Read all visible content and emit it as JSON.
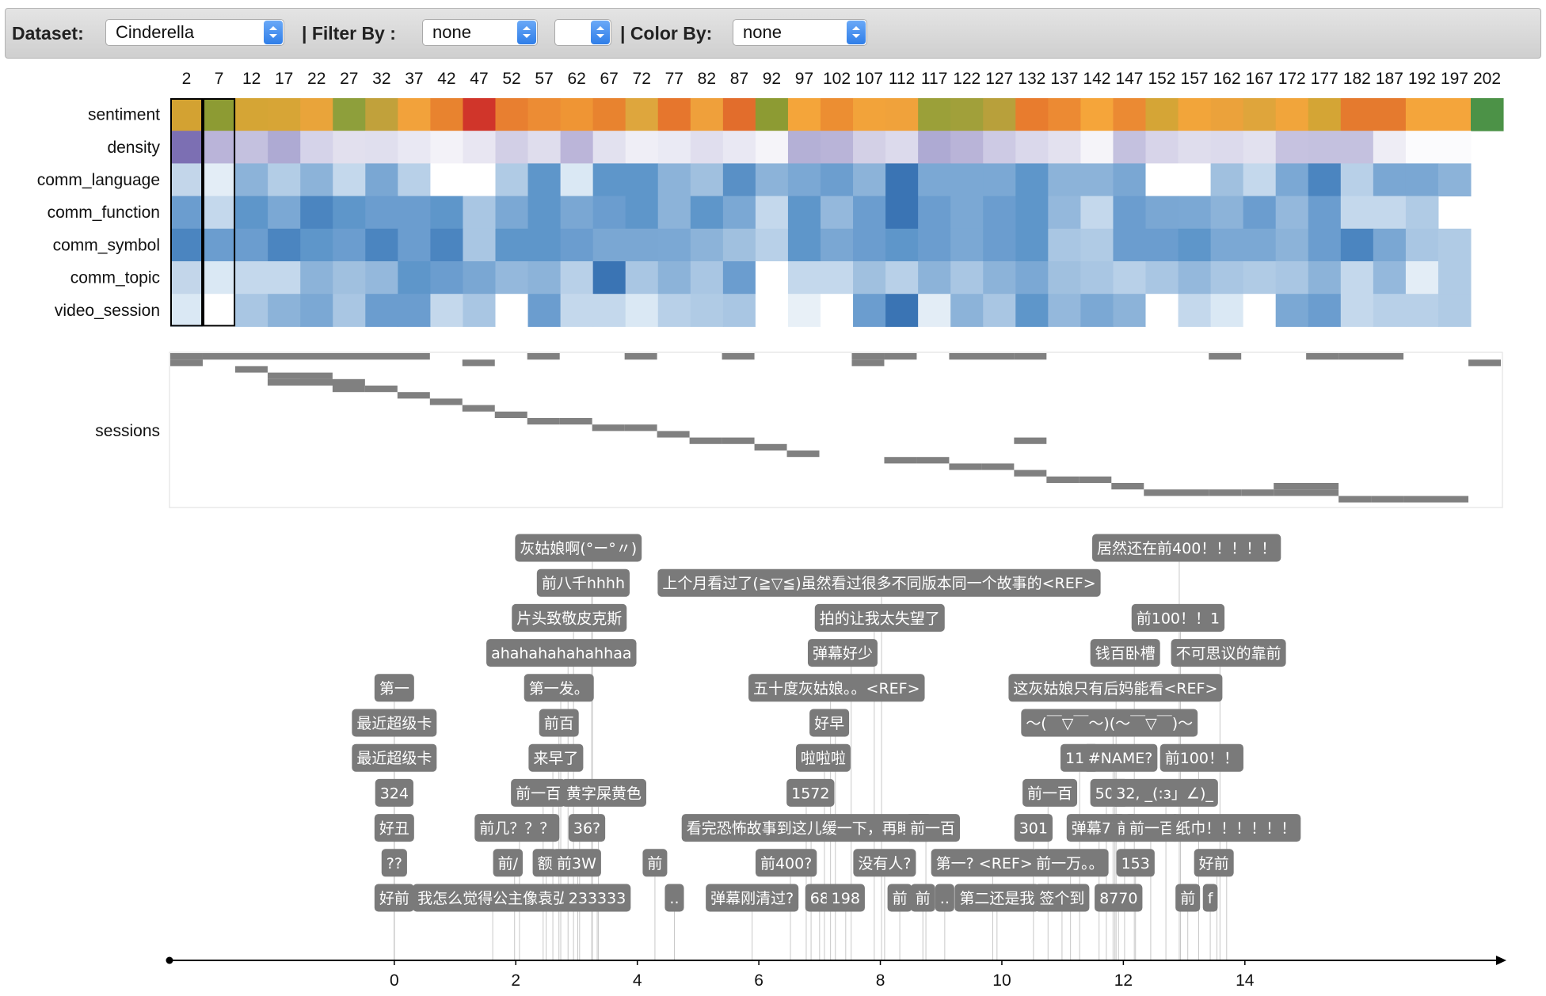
{
  "toolbar": {
    "dataset_label": "Dataset:",
    "dataset_value": "Cinderella",
    "filter_label": "| Filter By :",
    "filter_value": "none",
    "filter2_value": "",
    "color_label": "| Color By:",
    "color_value": "none"
  },
  "columns": [
    "2",
    "7",
    "12",
    "17",
    "22",
    "27",
    "32",
    "37",
    "42",
    "47",
    "52",
    "57",
    "62",
    "67",
    "72",
    "77",
    "82",
    "87",
    "92",
    "97",
    "102",
    "107",
    "112",
    "117",
    "122",
    "127",
    "132",
    "137",
    "142",
    "147",
    "152",
    "157",
    "162",
    "167",
    "172",
    "177",
    "182",
    "187",
    "192",
    "197",
    "202"
  ],
  "row_labels": [
    "sentiment",
    "density",
    "comm_language",
    "comm_function",
    "comm_symbol",
    "comm_topic",
    "video_session"
  ],
  "sessions_label": "sessions",
  "heat": {
    "sentiment": [
      "#d3a232",
      "#8d9b33",
      "#d5a535",
      "#d7a536",
      "#e9a43a",
      "#8e9f3b",
      "#c1a13b",
      "#f2a23b",
      "#e8832f",
      "#d0352a",
      "#e87f30",
      "#ec8c34",
      "#ef9534",
      "#e8832f",
      "#dea63d",
      "#e6762d",
      "#efa03b",
      "#e26d2c",
      "#8d9b33",
      "#f4a53a",
      "#ec8e32",
      "#f2a33a",
      "#f0a23b",
      "#9ba039",
      "#a1a03a",
      "#b8a03b",
      "#e87c2e",
      "#ec8a33",
      "#f5a53a",
      "#eb8a33",
      "#d5a536",
      "#f2a53a",
      "#eba23b",
      "#dfa53b",
      "#f1a53b",
      "#d4a535",
      "#e57a2e",
      "#e57a2e",
      "#f4a53b",
      "#f4a53b",
      "#4c9247"
    ],
    "density": [
      "#7c6fb3",
      "#bab4d9",
      "#c4c1df",
      "#aeaad3",
      "#d5d3e9",
      "#e2e0ee",
      "#e0dfee",
      "#e9e8f3",
      "#f3f2f8",
      "#e8e6f2",
      "#d2cfe6",
      "#dfdded",
      "#bbb5d9",
      "#e2e1ef",
      "#efeef6",
      "#eaeaf4",
      "#e0deee",
      "#e9e8f3",
      "#f5f4f9",
      "#b4b0d6",
      "#b9b4d8",
      "#d3d0e6",
      "#dcdaec",
      "#aeaad3",
      "#b9b4d8",
      "#cdcae4",
      "#dad8eb",
      "#e3e1ef",
      "#f5f4f9",
      "#c4c1df",
      "#d7d4e9",
      "#dfdded",
      "#dcdaec",
      "#e2e1ef",
      "#c6c2e0",
      "#c4c1df",
      "#c4c1df",
      "#eeedf5",
      "#fbfbfd",
      "#fbfbfd",
      null
    ],
    "comm_language": [
      "#c3d6ea",
      "#e3edf6",
      "#8cb3d9",
      "#b3cde6",
      "#8cb3d9",
      "#c4d8ec",
      "#7aa7d3",
      "#b8d0e8",
      "#ffffff",
      "#ffffff",
      "#b0cbe5",
      "#5e96ca",
      "#dae8f4",
      "#5e96ca",
      "#5e96ca",
      "#8cb3d9",
      "#a0c0df",
      "#5990c6",
      "#8cb3d9",
      "#7ba8d4",
      "#6c9ecf",
      "#8cb3d9",
      "#3a74b4",
      "#7ba8d4",
      "#7ba8d4",
      "#7ba8d4",
      "#5e96ca",
      "#8cb3d9",
      "#8cb3d9",
      "#7aa7d3",
      "#ffffff",
      "#ffffff",
      "#a0c0df",
      "#c4d8ec",
      "#7ba8d4",
      "#4b85c0",
      "#b8d0e8",
      "#7aa7d3",
      "#7aa7d3",
      "#8cb3d9",
      null
    ],
    "comm_function": [
      "#6b9dcf",
      "#c4d8ec",
      "#5e96ca",
      "#7ba8d4",
      "#4b85c0",
      "#5e96ca",
      "#6b9dcf",
      "#6b9dcf",
      "#5e96ca",
      "#a9c6e3",
      "#7ba8d4",
      "#5e96ca",
      "#7aa7d3",
      "#6b9dcf",
      "#5e96ca",
      "#8cb3d9",
      "#5e96ca",
      "#7ba8d4",
      "#c4d8ec",
      "#5e96ca",
      "#94b8dc",
      "#6b9dcf",
      "#3a74b4",
      "#6b9dcf",
      "#7ba8d4",
      "#6b9dcf",
      "#5e96ca",
      "#94b8dc",
      "#c4d8ec",
      "#6b9dcf",
      "#7aa7d3",
      "#7ba8d4",
      "#8cb3d9",
      "#6b9dcf",
      "#94b8dc",
      "#6b9dcf",
      "#c4d8ec",
      "#c4d8ec",
      "#b0cbe5",
      null,
      null
    ],
    "comm_symbol": [
      "#4b85c0",
      "#6b9dcf",
      "#6b9dcf",
      "#4b85c0",
      "#5e96ca",
      "#6b9dcf",
      "#4b85c0",
      "#6b9dcf",
      "#4b85c0",
      "#a9c6e3",
      "#5e96ca",
      "#5e96ca",
      "#6b9dcf",
      "#7aa7d3",
      "#7aa7d3",
      "#7ba8d4",
      "#8cb3d9",
      "#a0c0df",
      "#b8d0e8",
      "#5e96ca",
      "#7aa7d3",
      "#6b9dcf",
      "#5e96ca",
      "#6b9dcf",
      "#7ba8d4",
      "#6b9dcf",
      "#5e96ca",
      "#a9c6e3",
      "#b0cbe5",
      "#6b9dcf",
      "#6b9dcf",
      "#5e96ca",
      "#7ba8d4",
      "#7ba8d4",
      "#8cb3d9",
      "#6b9dcf",
      "#4b85c0",
      "#7aa7d3",
      "#a9c6e3",
      "#b0cbe5",
      null
    ],
    "comm_topic": [
      "#c3d6ea",
      "#dae8f4",
      "#c4d8ec",
      "#c4d8ec",
      "#8cb3d9",
      "#a0c0df",
      "#94b8dc",
      "#5e96ca",
      "#6b9dcf",
      "#7aa7d3",
      "#94b8dc",
      "#8cb3d9",
      "#b8d0e8",
      "#3a74b4",
      "#a9c6e3",
      "#8cb3d9",
      "#a9c6e3",
      "#6b9dcf",
      "#ffffff",
      "#c4d8ec",
      "#c4d8ec",
      "#a0c0df",
      "#b8d0e8",
      "#8cb3d9",
      "#a9c6e3",
      "#8cb3d9",
      "#7ba8d4",
      "#a0c0df",
      "#a9c6e3",
      "#b8d0e8",
      "#a9c6e3",
      "#94b8dc",
      "#a9c6e3",
      "#b0cbe5",
      "#a9c6e3",
      "#8cb3d9",
      "#c4d8ec",
      "#94b8dc",
      "#e3edf6",
      "#b0cbe5",
      null
    ],
    "video_session": [
      "#dae8f4",
      "#ffffff",
      "#a9c6e3",
      "#8cb3d9",
      "#7ba8d4",
      "#a9c6e3",
      "#6b9dcf",
      "#6b9dcf",
      "#c4d8ec",
      "#a9c6e3",
      "#ffffff",
      "#6b9dcf",
      "#c4d8ec",
      "#c4d8ec",
      "#dae8f4",
      "#b8d0e8",
      "#b0cbe5",
      "#a9c6e3",
      "#ffffff",
      "#e8f0f7",
      "#ffffff",
      "#6b9dcf",
      "#3a74b4",
      "#e3edf6",
      "#8cb3d9",
      "#a9c6e3",
      "#5e96ca",
      "#94b8dc",
      "#7ba8d4",
      "#8cb3d9",
      "#ffffff",
      "#c4d8ec",
      "#dae8f4",
      "#ffffff",
      "#7ba8d4",
      "#6b9dcf",
      "#c4d8ec",
      "#b8d0e8",
      "#b8d0e8",
      "#b0cbe5",
      null
    ]
  },
  "sessions": {
    "duration": 205,
    "rows": 20,
    "spans": [
      [
        0,
        5,
        0
      ],
      [
        0,
        5,
        1
      ],
      [
        5,
        40,
        0
      ],
      [
        10,
        15,
        2
      ],
      [
        15,
        25,
        3
      ],
      [
        20,
        25,
        4
      ],
      [
        15,
        30,
        4
      ],
      [
        25,
        30,
        5
      ],
      [
        30,
        35,
        5
      ],
      [
        35,
        40,
        6
      ],
      [
        40,
        45,
        7
      ],
      [
        45,
        50,
        8
      ],
      [
        45,
        50,
        1
      ],
      [
        50,
        55,
        9
      ],
      [
        55,
        60,
        10
      ],
      [
        55,
        60,
        0
      ],
      [
        60,
        65,
        10
      ],
      [
        65,
        70,
        11
      ],
      [
        70,
        75,
        11
      ],
      [
        70,
        75,
        0
      ],
      [
        75,
        80,
        12
      ],
      [
        80,
        85,
        13
      ],
      [
        85,
        90,
        13
      ],
      [
        85,
        90,
        0
      ],
      [
        90,
        95,
        14
      ],
      [
        95,
        100,
        15
      ],
      [
        105,
        110,
        0
      ],
      [
        105,
        110,
        1
      ],
      [
        110,
        115,
        0
      ],
      [
        110,
        115,
        16
      ],
      [
        115,
        120,
        16
      ],
      [
        120,
        130,
        0
      ],
      [
        120,
        125,
        17
      ],
      [
        125,
        130,
        17
      ],
      [
        130,
        135,
        18
      ],
      [
        130,
        135,
        0
      ],
      [
        130,
        135,
        13
      ],
      [
        135,
        140,
        19
      ],
      [
        140,
        145,
        19
      ],
      [
        145,
        150,
        20
      ],
      [
        150,
        160,
        21
      ],
      [
        160,
        165,
        21
      ],
      [
        160,
        165,
        0
      ],
      [
        165,
        170,
        21
      ],
      [
        170,
        180,
        20
      ],
      [
        170,
        180,
        21
      ],
      [
        175,
        180,
        0
      ],
      [
        180,
        185,
        22
      ],
      [
        185,
        190,
        22
      ],
      [
        180,
        190,
        0
      ],
      [
        190,
        200,
        22
      ],
      [
        200,
        205,
        1
      ]
    ]
  },
  "timeline": {
    "ticks": [
      "0",
      "2",
      "4",
      "6",
      "8",
      "10",
      "12",
      "14"
    ],
    "tick_values": [
      0,
      2,
      4,
      6,
      8,
      10,
      12,
      14
    ],
    "axis_min": -3.7,
    "axis_max": 18.2
  },
  "annotations": [
    {
      "text": "灰姑娘啊(°ー°〃)",
      "cx": 3.03,
      "row": 0,
      "t": 3.26
    },
    {
      "text": "居然还在前400！！！！！",
      "cx": 13.04,
      "row": 0,
      "t": 12.92
    },
    {
      "text": "前八千hhhh",
      "cx": 3.11,
      "row": 1,
      "t": 3.25
    },
    {
      "text": "上个月看过了(≧▽≦)虽然看过很多不同版本同一个故事的<REF>",
      "cx": 7.98,
      "row": 1,
      "t": 8.02
    },
    {
      "text": "片头致敬皮克斯",
      "cx": 2.88,
      "row": 2,
      "t": 2.95
    },
    {
      "text": "拍的让我太失望了",
      "cx": 7.99,
      "row": 2,
      "t": 7.9
    },
    {
      "text": "前100！！1",
      "cx": 12.9,
      "row": 2,
      "t": 12.94
    },
    {
      "text": "ahahahahahahhaa",
      "cx": 2.75,
      "row": 3,
      "t": 2.86
    },
    {
      "text": "弹幕好少",
      "cx": 7.38,
      "row": 3,
      "t": 7.52
    },
    {
      "text": "钱百卧槽",
      "cx": 12.03,
      "row": 3,
      "t": 12.18
    },
    {
      "text": "不可思议的靠前",
      "cx": 13.73,
      "row": 3,
      "t": 13.59
    },
    {
      "text": "第一",
      "cx": 0.0,
      "row": 4,
      "t": 0.0
    },
    {
      "text": "第一发。",
      "cx": 2.71,
      "row": 4,
      "t": 2.74
    },
    {
      "text": "五十度灰姑娘。。<REF>",
      "cx": 7.28,
      "row": 4,
      "t": 7.18
    },
    {
      "text": "这灰姑娘只有后妈能看<REF>",
      "cx": 11.87,
      "row": 4,
      "t": 11.88
    },
    {
      "text": "最近超级卡",
      "cx": 0.0,
      "row": 5,
      "t": 0.0
    },
    {
      "text": "前百",
      "cx": 2.71,
      "row": 5,
      "t": 2.71
    },
    {
      "text": "好早",
      "cx": 7.16,
      "row": 5,
      "t": 7.26
    },
    {
      "text": "～(￣▽￣～)(～￣▽￣)～",
      "cx": 11.77,
      "row": 5,
      "t": 11.83
    },
    {
      "text": "最近超级卡",
      "cx": 0.0,
      "row": 6,
      "t": 0.0
    },
    {
      "text": "来早了",
      "cx": 2.66,
      "row": 6,
      "t": 2.61
    },
    {
      "text": "啦啦啦",
      "cx": 7.06,
      "row": 6,
      "t": 7.08
    },
    {
      "text": "110",
      "cx": 11.28,
      "row": 6,
      "t": 11.28
    },
    {
      "text": "#NAME?",
      "cx": 11.95,
      "row": 6,
      "t": 11.86
    },
    {
      "text": "前100！！",
      "cx": 13.29,
      "row": 6,
      "t": 13.24
    },
    {
      "text": "324",
      "cx": 0.0,
      "row": 7,
      "t": 0.0
    },
    {
      "text": "前一百",
      "cx": 2.37,
      "row": 7,
      "t": 2.45
    },
    {
      "text": "黄字屎黄色",
      "cx": 3.45,
      "row": 7,
      "t": 3.36
    },
    {
      "text": "1572",
      "cx": 6.85,
      "row": 7,
      "t": 6.78
    },
    {
      "text": "前一百",
      "cx": 10.79,
      "row": 7,
      "t": 10.76
    },
    {
      "text": "507",
      "cx": 11.77,
      "row": 7,
      "t": 11.72
    },
    {
      "text": "32, _(:з」∠)_",
      "cx": 12.68,
      "row": 7,
      "t": 12.7
    },
    {
      "text": "好丑",
      "cx": 0.0,
      "row": 8,
      "t": 0.0
    },
    {
      "text": "前几？？？",
      "cx": 2.02,
      "row": 8,
      "t": 2.06
    },
    {
      "text": "36?",
      "cx": 3.17,
      "row": 8,
      "t": 3.05
    },
    {
      "text": "看完恐怖故事到这儿缓一下，再睡觉",
      "cx": 6.79,
      "row": 8,
      "t": 6.86
    },
    {
      "text": "前一百",
      "cx": 8.86,
      "row": 8,
      "t": 8.75
    },
    {
      "text": "301",
      "cx": 10.52,
      "row": 8,
      "t": 10.52
    },
    {
      "text": "弹幕77",
      "cx": 11.55,
      "row": 8,
      "t": 11.6
    },
    {
      "text": "前",
      "cx": 12.02,
      "row": 8,
      "t": 12.02
    },
    {
      "text": "前一百",
      "cx": 12.47,
      "row": 8,
      "t": 12.45
    },
    {
      "text": "纸巾！！！！！！",
      "cx": 13.85,
      "row": 8,
      "t": 13.7
    },
    {
      "text": "??",
      "cx": 0.0,
      "row": 9,
      "t": 0.0
    },
    {
      "text": "前/",
      "cx": 1.87,
      "row": 9,
      "t": 1.98
    },
    {
      "text": "额",
      "cx": 2.48,
      "row": 9,
      "t": 2.5
    },
    {
      "text": "前3W",
      "cx": 3.0,
      "row": 9,
      "t": 3.02
    },
    {
      "text": "前",
      "cx": 4.29,
      "row": 9,
      "t": 4.29
    },
    {
      "text": "前400?",
      "cx": 6.45,
      "row": 9,
      "t": 6.52
    },
    {
      "text": "没有人?",
      "cx": 8.07,
      "row": 9,
      "t": 8.07
    },
    {
      "text": "第一? <REF>",
      "cx": 9.71,
      "row": 9,
      "t": 9.85
    },
    {
      "text": "前一万。。",
      "cx": 11.12,
      "row": 9,
      "t": 11.13
    },
    {
      "text": "153",
      "cx": 12.2,
      "row": 9,
      "t": 12.2
    },
    {
      "text": "好前",
      "cx": 13.49,
      "row": 9,
      "t": 13.54
    },
    {
      "text": "好前",
      "cx": 0.0,
      "row": 10,
      "t": 0.0
    },
    {
      "text": "我怎么觉得公主像袁弘",
      "cx": 1.62,
      "row": 10,
      "t": 1.62
    },
    {
      "text": "233333",
      "cx": 3.34,
      "row": 10,
      "t": 3.34
    },
    {
      "text": "..",
      "cx": 4.61,
      "row": 10,
      "t": 4.61
    },
    {
      "text": "弹幕刚清过?",
      "cx": 5.89,
      "row": 10,
      "t": 5.89
    },
    {
      "text": "68",
      "cx": 7.0,
      "row": 10,
      "t": 7.0
    },
    {
      "text": "198",
      "cx": 7.43,
      "row": 10,
      "t": 7.43
    },
    {
      "text": "前",
      "cx": 8.32,
      "row": 10,
      "t": 8.32
    },
    {
      "text": "前",
      "cx": 8.7,
      "row": 10,
      "t": 8.7
    },
    {
      "text": "..",
      "cx": 9.06,
      "row": 10,
      "t": 9.06
    },
    {
      "text": "第二还是我",
      "cx": 9.92,
      "row": 10,
      "t": 9.92
    },
    {
      "text": "签个到",
      "cx": 10.99,
      "row": 10,
      "t": 10.99
    },
    {
      "text": "8770",
      "cx": 11.92,
      "row": 10,
      "t": 11.92
    },
    {
      "text": "前",
      "cx": 13.06,
      "row": 10,
      "t": 13.06
    },
    {
      "text": "f",
      "cx": 13.43,
      "row": 10,
      "t": 13.43
    }
  ]
}
